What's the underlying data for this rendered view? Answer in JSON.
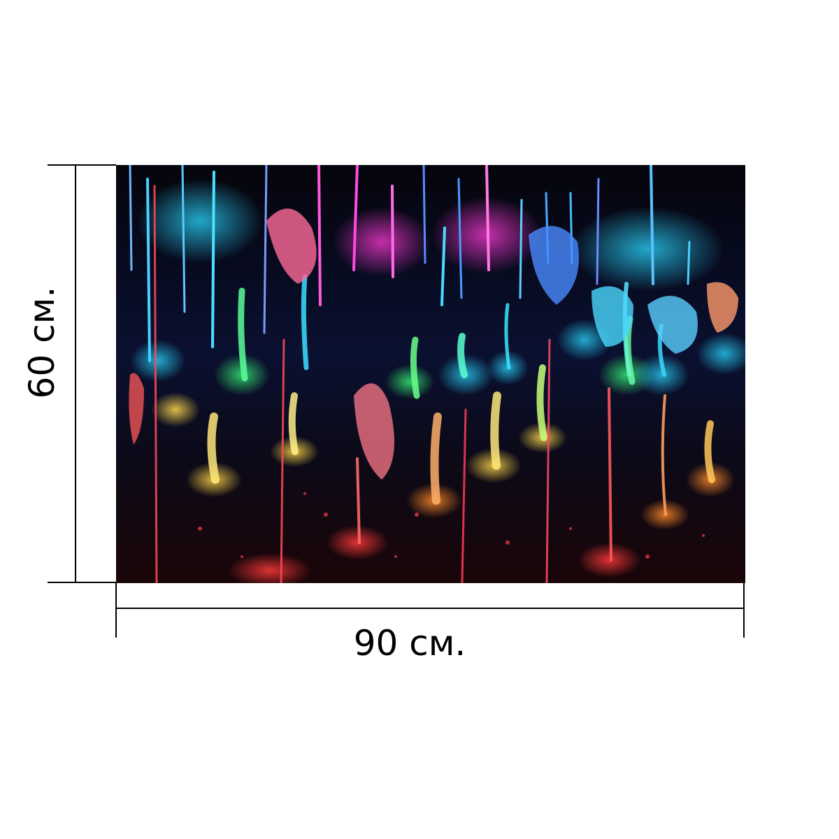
{
  "product": {
    "image_icon": "fountain-lights-photo",
    "colors": {
      "background": "#040408",
      "red": "#ff2a3a",
      "orange": "#ff8a2a",
      "yellow": "#ffe85a",
      "green": "#3aff6a",
      "cyan": "#2ad8ff",
      "blue": "#2a6aff",
      "magenta": "#ff2ad8"
    }
  },
  "dimensions": {
    "width_label": "90 см.",
    "height_label": "60 см."
  }
}
